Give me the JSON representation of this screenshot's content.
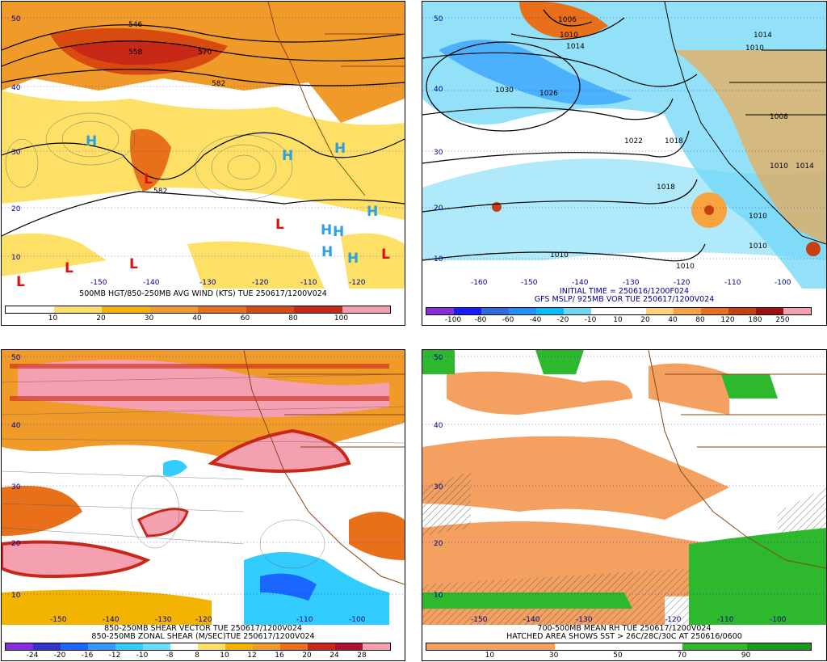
{
  "panels": [
    {
      "id": "p1",
      "title_lines": [
        "500MB HGT/850-250MB AVG WIND (KTS) TUE 250617/1200V024"
      ],
      "colorbar": {
        "labels": [
          "10",
          "20",
          "30",
          "40",
          "60",
          "80",
          "100"
        ],
        "colors": [
          "#ffffff",
          "#ffe066",
          "#f2b400",
          "#f09a2a",
          "#e8701a",
          "#d84a10",
          "#c82818",
          "#f4a0b0"
        ]
      },
      "lat_labels": [
        "50",
        "40",
        "30",
        "20",
        "10"
      ],
      "lon_labels": [
        "-150",
        "-140",
        "-130",
        "-120",
        "-110",
        "-120"
      ],
      "contour_labels": [
        "546",
        "558",
        "570",
        "582",
        "582"
      ],
      "pressure_centers": {
        "H": "H",
        "L": "L"
      }
    },
    {
      "id": "p2",
      "title_lines": [
        "INITIAL TIME = 250616/1200F024",
        "GFS MSLP/ 925MB VOR TUE 250617/1200V024"
      ],
      "colorbar": {
        "labels": [
          "-100",
          "-80",
          "-60",
          "-40",
          "-20",
          "-10",
          "10",
          "20",
          "40",
          "80",
          "120",
          "180",
          "250"
        ],
        "colors": [
          "#8a2be2",
          "#1a1aff",
          "#2d6cdf",
          "#1e90ff",
          "#00bfff",
          "#6fd7f5",
          "#ffffff",
          "#ffffff",
          "#ffd27a",
          "#f7a340",
          "#e8701a",
          "#c84010",
          "#a01010",
          "#f4a0b0"
        ]
      },
      "lat_labels": [
        "50",
        "40",
        "30",
        "20",
        "10"
      ],
      "lon_labels": [
        "-160",
        "-150",
        "-140",
        "-130",
        "-120",
        "-110",
        "-100"
      ],
      "contour_labels": [
        "1006",
        "1010",
        "1014",
        "1030",
        "1026",
        "1022",
        "1018",
        "1014",
        "1010",
        "1010",
        "1010",
        "1010",
        "1010",
        "1018",
        "1014",
        "1010",
        "1008"
      ]
    },
    {
      "id": "p3",
      "title_lines": [
        "850-250MB SHEAR VECTOR TUE 250617/1200V024",
        "850-250MB ZONAL SHEAR (M/SEC)TUE 250617/1200V024"
      ],
      "colorbar": {
        "labels": [
          "-24",
          "-20",
          "-16",
          "-12",
          "-10",
          "-8",
          "8",
          "10",
          "12",
          "16",
          "20",
          "24",
          "28"
        ],
        "colors": [
          "#8a2be2",
          "#3333cc",
          "#1a66ff",
          "#3399ff",
          "#33ccff",
          "#66e0ff",
          "#ffffff",
          "#ffe066",
          "#f2b400",
          "#f09a2a",
          "#e8701a",
          "#c82818",
          "#b01030",
          "#f4a0b0"
        ]
      },
      "lat_labels": [
        "50",
        "40",
        "30",
        "20",
        "10"
      ],
      "lon_labels": [
        "-150",
        "-140",
        "-130",
        "-120",
        "-110",
        "-100"
      ]
    },
    {
      "id": "p4",
      "title_lines": [
        "700-500MB MEAN RH TUE 250617/1200V024",
        "HATCHED AREA SHOWS SST > 26C/28C/30C AT 250616/0600"
      ],
      "colorbar": {
        "labels": [
          "10",
          "30",
          "50",
          "70",
          "90"
        ],
        "colors": [
          "#f4a060",
          "#f4a060",
          "#ffffff",
          "#ffffff",
          "#2db82d",
          "#1a9a1a"
        ]
      },
      "lat_labels": [
        "50",
        "40",
        "30",
        "20",
        "10"
      ],
      "lon_labels": [
        "-150",
        "-140",
        "-130",
        "-120",
        "-110",
        "-100"
      ]
    }
  ]
}
